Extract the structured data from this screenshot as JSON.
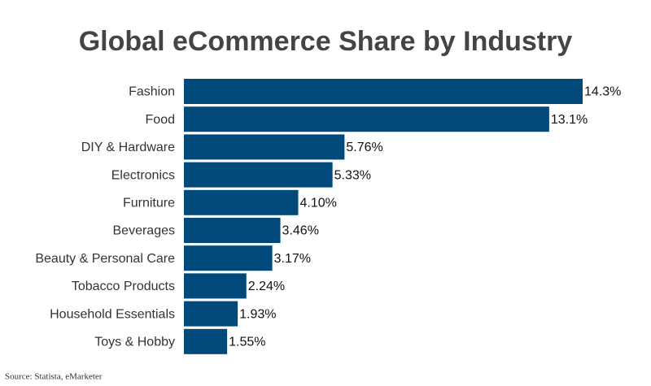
{
  "chart_data": {
    "type": "bar",
    "orientation": "horizontal",
    "title": "Global eCommerce Share by Industry",
    "categories": [
      "Fashion",
      "Food",
      "DIY & Hardware",
      "Electronics",
      "Furniture",
      "Beverages",
      "Beauty & Personal Care",
      "Tobacco Products",
      "Household Essentials",
      "Toys & Hobby"
    ],
    "values": [
      14.3,
      13.1,
      5.76,
      5.33,
      4.1,
      3.46,
      3.17,
      2.24,
      1.93,
      1.55
    ],
    "value_labels": [
      "14.3%",
      "13.1%",
      "5.76%",
      "5.33%",
      "4.10%",
      "3.46%",
      "3.17%",
      "2.24%",
      "1.93%",
      "1.55%"
    ],
    "color": "#00497a",
    "source": "Source: Statista, eMarketer"
  }
}
